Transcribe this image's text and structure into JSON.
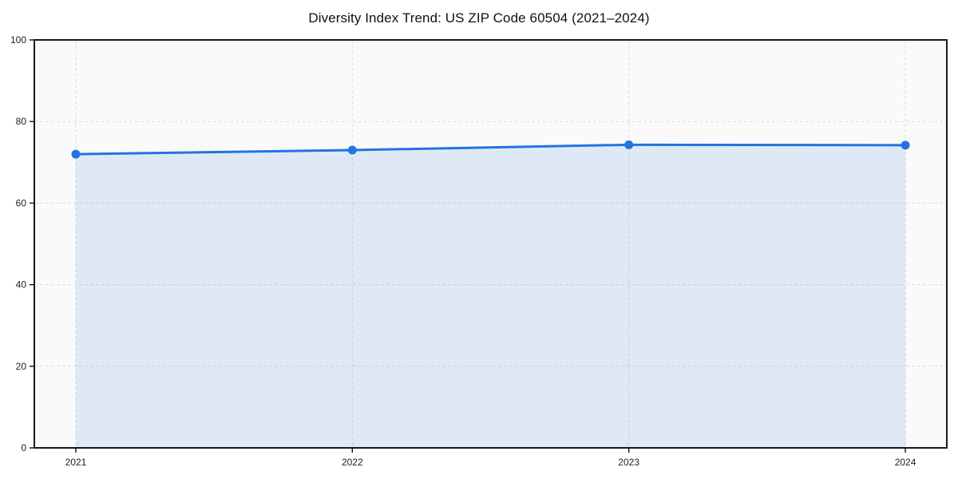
{
  "chart_data": {
    "type": "area",
    "title": "Diversity Index Trend: US ZIP Code 60504 (2021–2024)",
    "x": [
      2021,
      2022,
      2023,
      2024
    ],
    "xtick_labels": [
      "2021",
      "2022",
      "2023",
      "2024"
    ],
    "values": [
      72,
      73,
      74.3,
      74.2
    ],
    "ylim": [
      0,
      100
    ],
    "yticks": [
      0,
      20,
      40,
      60,
      80,
      100
    ],
    "ytick_labels": [
      "0",
      "20",
      "40",
      "60",
      "80",
      "100"
    ],
    "xlabel": "",
    "ylabel": "",
    "grid": true,
    "grid_style": "dashed",
    "legend": "none",
    "line_color": "#2274e0",
    "fill_color": "rgba(34,116,224,0.12)",
    "marker": "circle",
    "plot_bg": "#fafafa",
    "grid_color": "#dcdcdc",
    "border_color": "#000000",
    "tick_label_color": "#222222"
  }
}
